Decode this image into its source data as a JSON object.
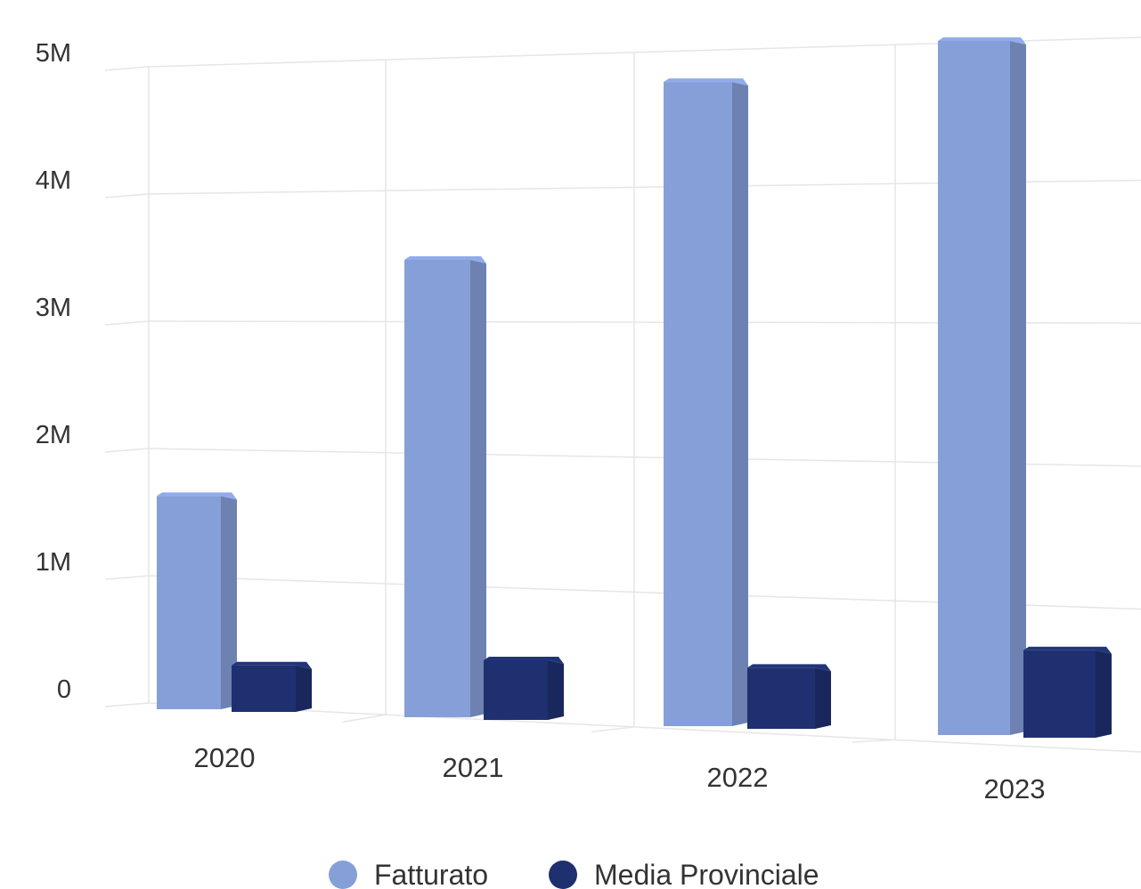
{
  "chart_data": {
    "type": "bar",
    "style": "3d-column",
    "categories": [
      "2020",
      "2021",
      "2022",
      "2023"
    ],
    "series": [
      {
        "name": "Fatturato",
        "color": "#869fd9",
        "values": [
          1650000,
          3450000,
          4750000,
          5000000
        ]
      },
      {
        "name": "Media Provinciale",
        "color": "#1f3070",
        "values": [
          360000,
          450000,
          450000,
          630000
        ]
      }
    ],
    "y_ticks": [
      {
        "value": 0,
        "label": "0"
      },
      {
        "value": 1000000,
        "label": "1M"
      },
      {
        "value": 2000000,
        "label": "2M"
      },
      {
        "value": 3000000,
        "label": "3M"
      },
      {
        "value": 4000000,
        "label": "4M"
      },
      {
        "value": 5000000,
        "label": "5M"
      }
    ],
    "ylim": [
      0,
      5000000
    ],
    "grid": true,
    "legend_position": "bottom-center",
    "title": "",
    "xlabel": "",
    "ylabel": ""
  }
}
